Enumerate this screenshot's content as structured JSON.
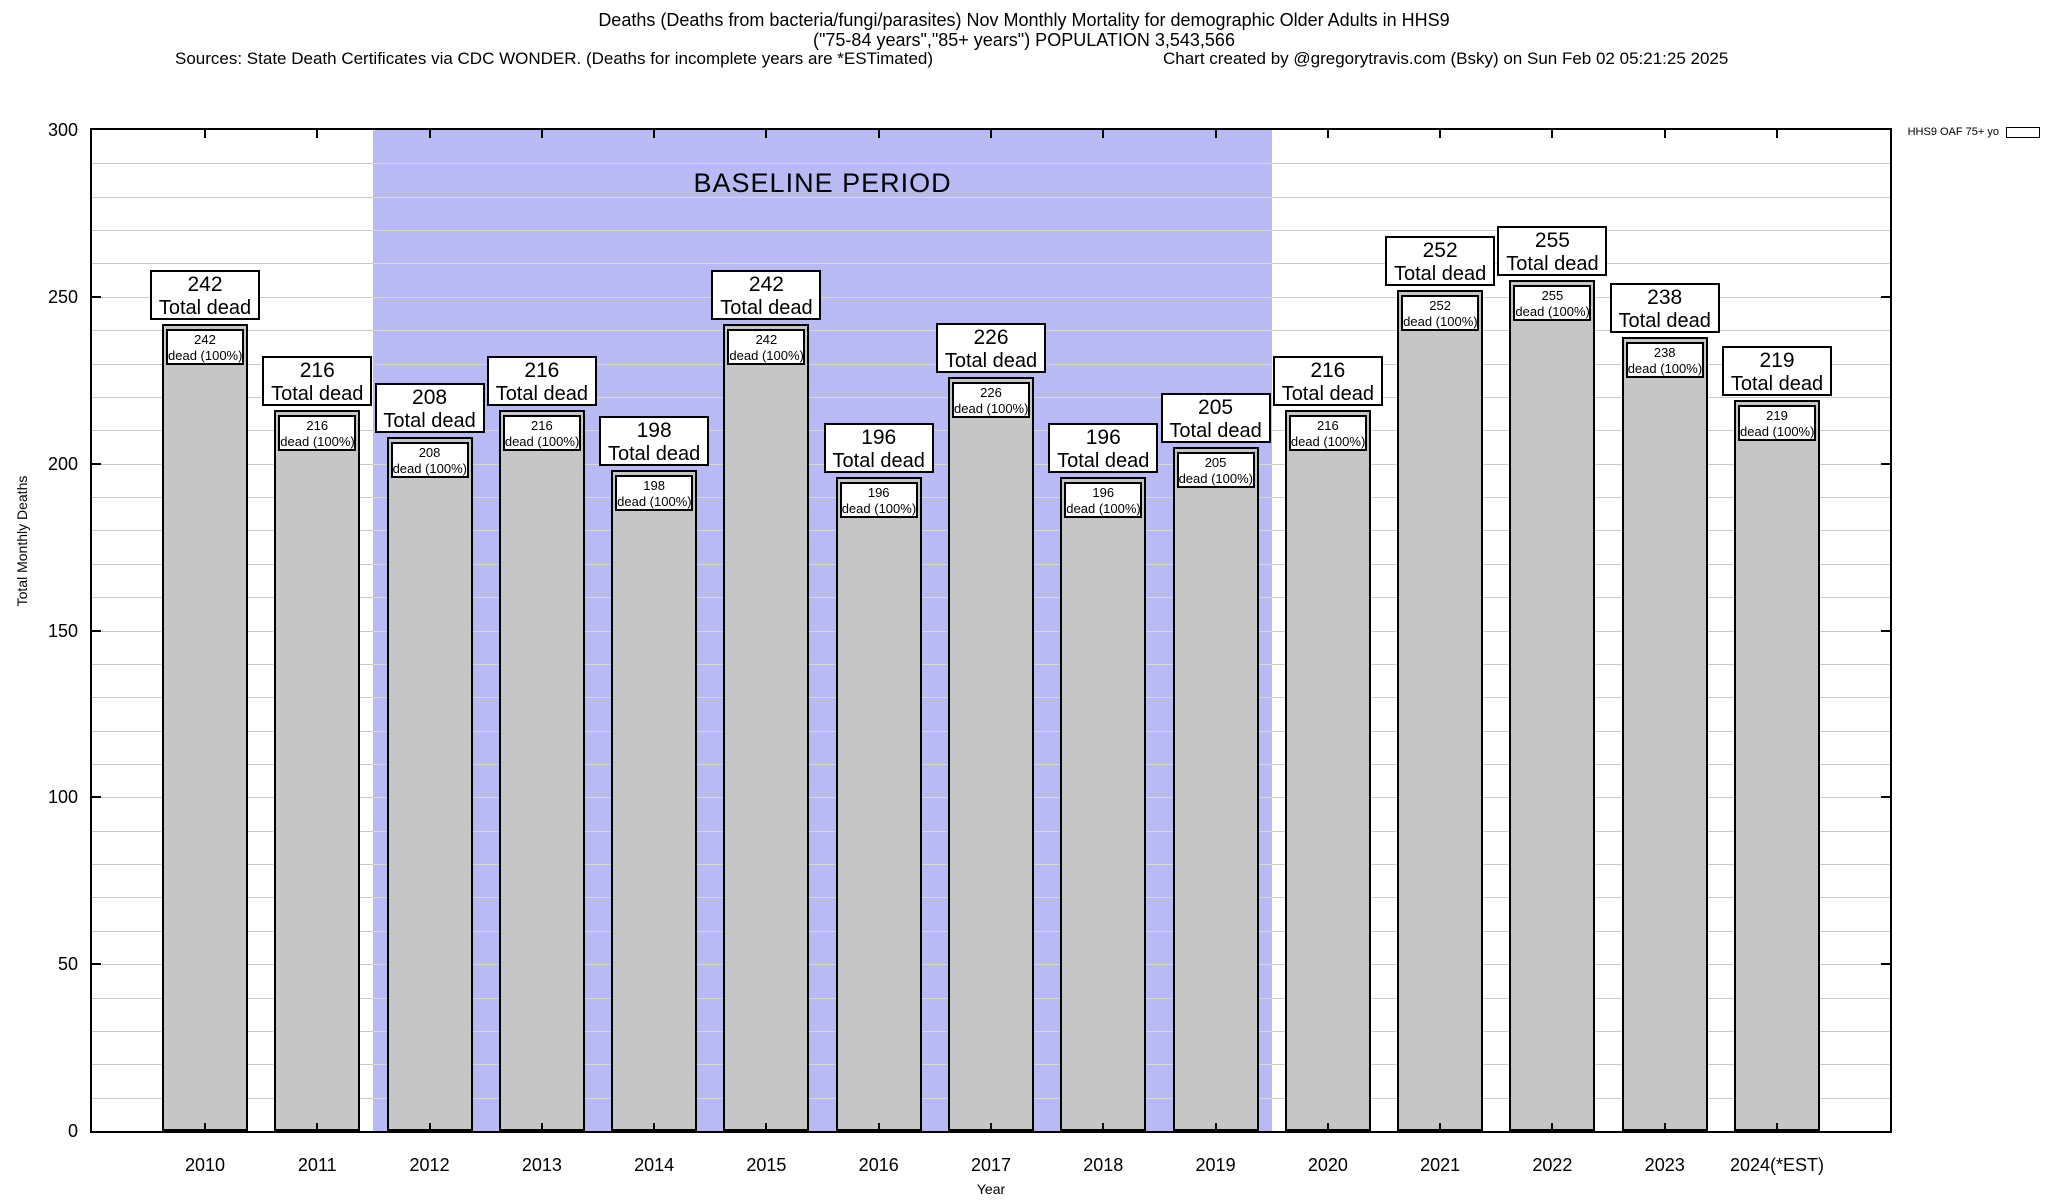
{
  "header": {
    "title_line1": "Deaths (Deaths from bacteria/fungi/parasites) Nov Monthly Mortality for demographic Older Adults in HHS9",
    "title_line2": "(\"75-84 years\",\"85+ years\") POPULATION 3,543,566",
    "sources_line": "Sources: State Death Certificates via CDC WONDER. (Deaths for incomplete years are *ESTimated)",
    "credit_line": "Chart created by @gregorytravis.com (Bsky) on Sun Feb 02 05:21:25 2025"
  },
  "legend": {
    "label": "HHS9 OAF 75+ yo",
    "swatch_color": "#c6c6c6",
    "position": "top-right, outside plot frame"
  },
  "chart_data": {
    "type": "bar",
    "title": "Deaths (Deaths from bacteria/fungi/parasites) Nov Monthly Mortality for demographic Older Adults in HHS9",
    "subtitle": "(\"75-84 years\",\"85+ years\") POPULATION 3,543,566",
    "xlabel": "Year",
    "ylabel": "Total Monthly Deaths",
    "ylim": [
      0,
      300
    ],
    "ytick_labels": [
      "0",
      "50",
      "100",
      "150",
      "200",
      "250",
      "300"
    ],
    "ytick_major_step": 50,
    "grid_minor_step": 10,
    "grid": "horizontal lines every 10 units",
    "legend_entries": [
      "HHS9 OAF 75+ yo"
    ],
    "categories": [
      "2010",
      "2011",
      "2012",
      "2013",
      "2014",
      "2015",
      "2016",
      "2017",
      "2018",
      "2019",
      "2020",
      "2021",
      "2022",
      "2023",
      "2024(*EST)"
    ],
    "values": [
      242,
      216,
      208,
      216,
      198,
      242,
      196,
      226,
      196,
      205,
      216,
      252,
      255,
      238,
      219
    ],
    "bar_outer_label_line2": "Total dead",
    "bar_inner_label_line2": "dead (100%)",
    "annotations": {
      "baseline_label": "BASELINE PERIOD",
      "baseline_from_category": "2012",
      "baseline_to_category": "2019"
    }
  },
  "colors": {
    "background": "#ffffff",
    "bar_fill": "#c6c6c6",
    "bar_border": "#000000",
    "baseline_fill": "#b9b9f3",
    "grid_line_on_white": "#c9c9c9",
    "grid_line_on_baseline": "#dadaca",
    "text": "#000000"
  }
}
